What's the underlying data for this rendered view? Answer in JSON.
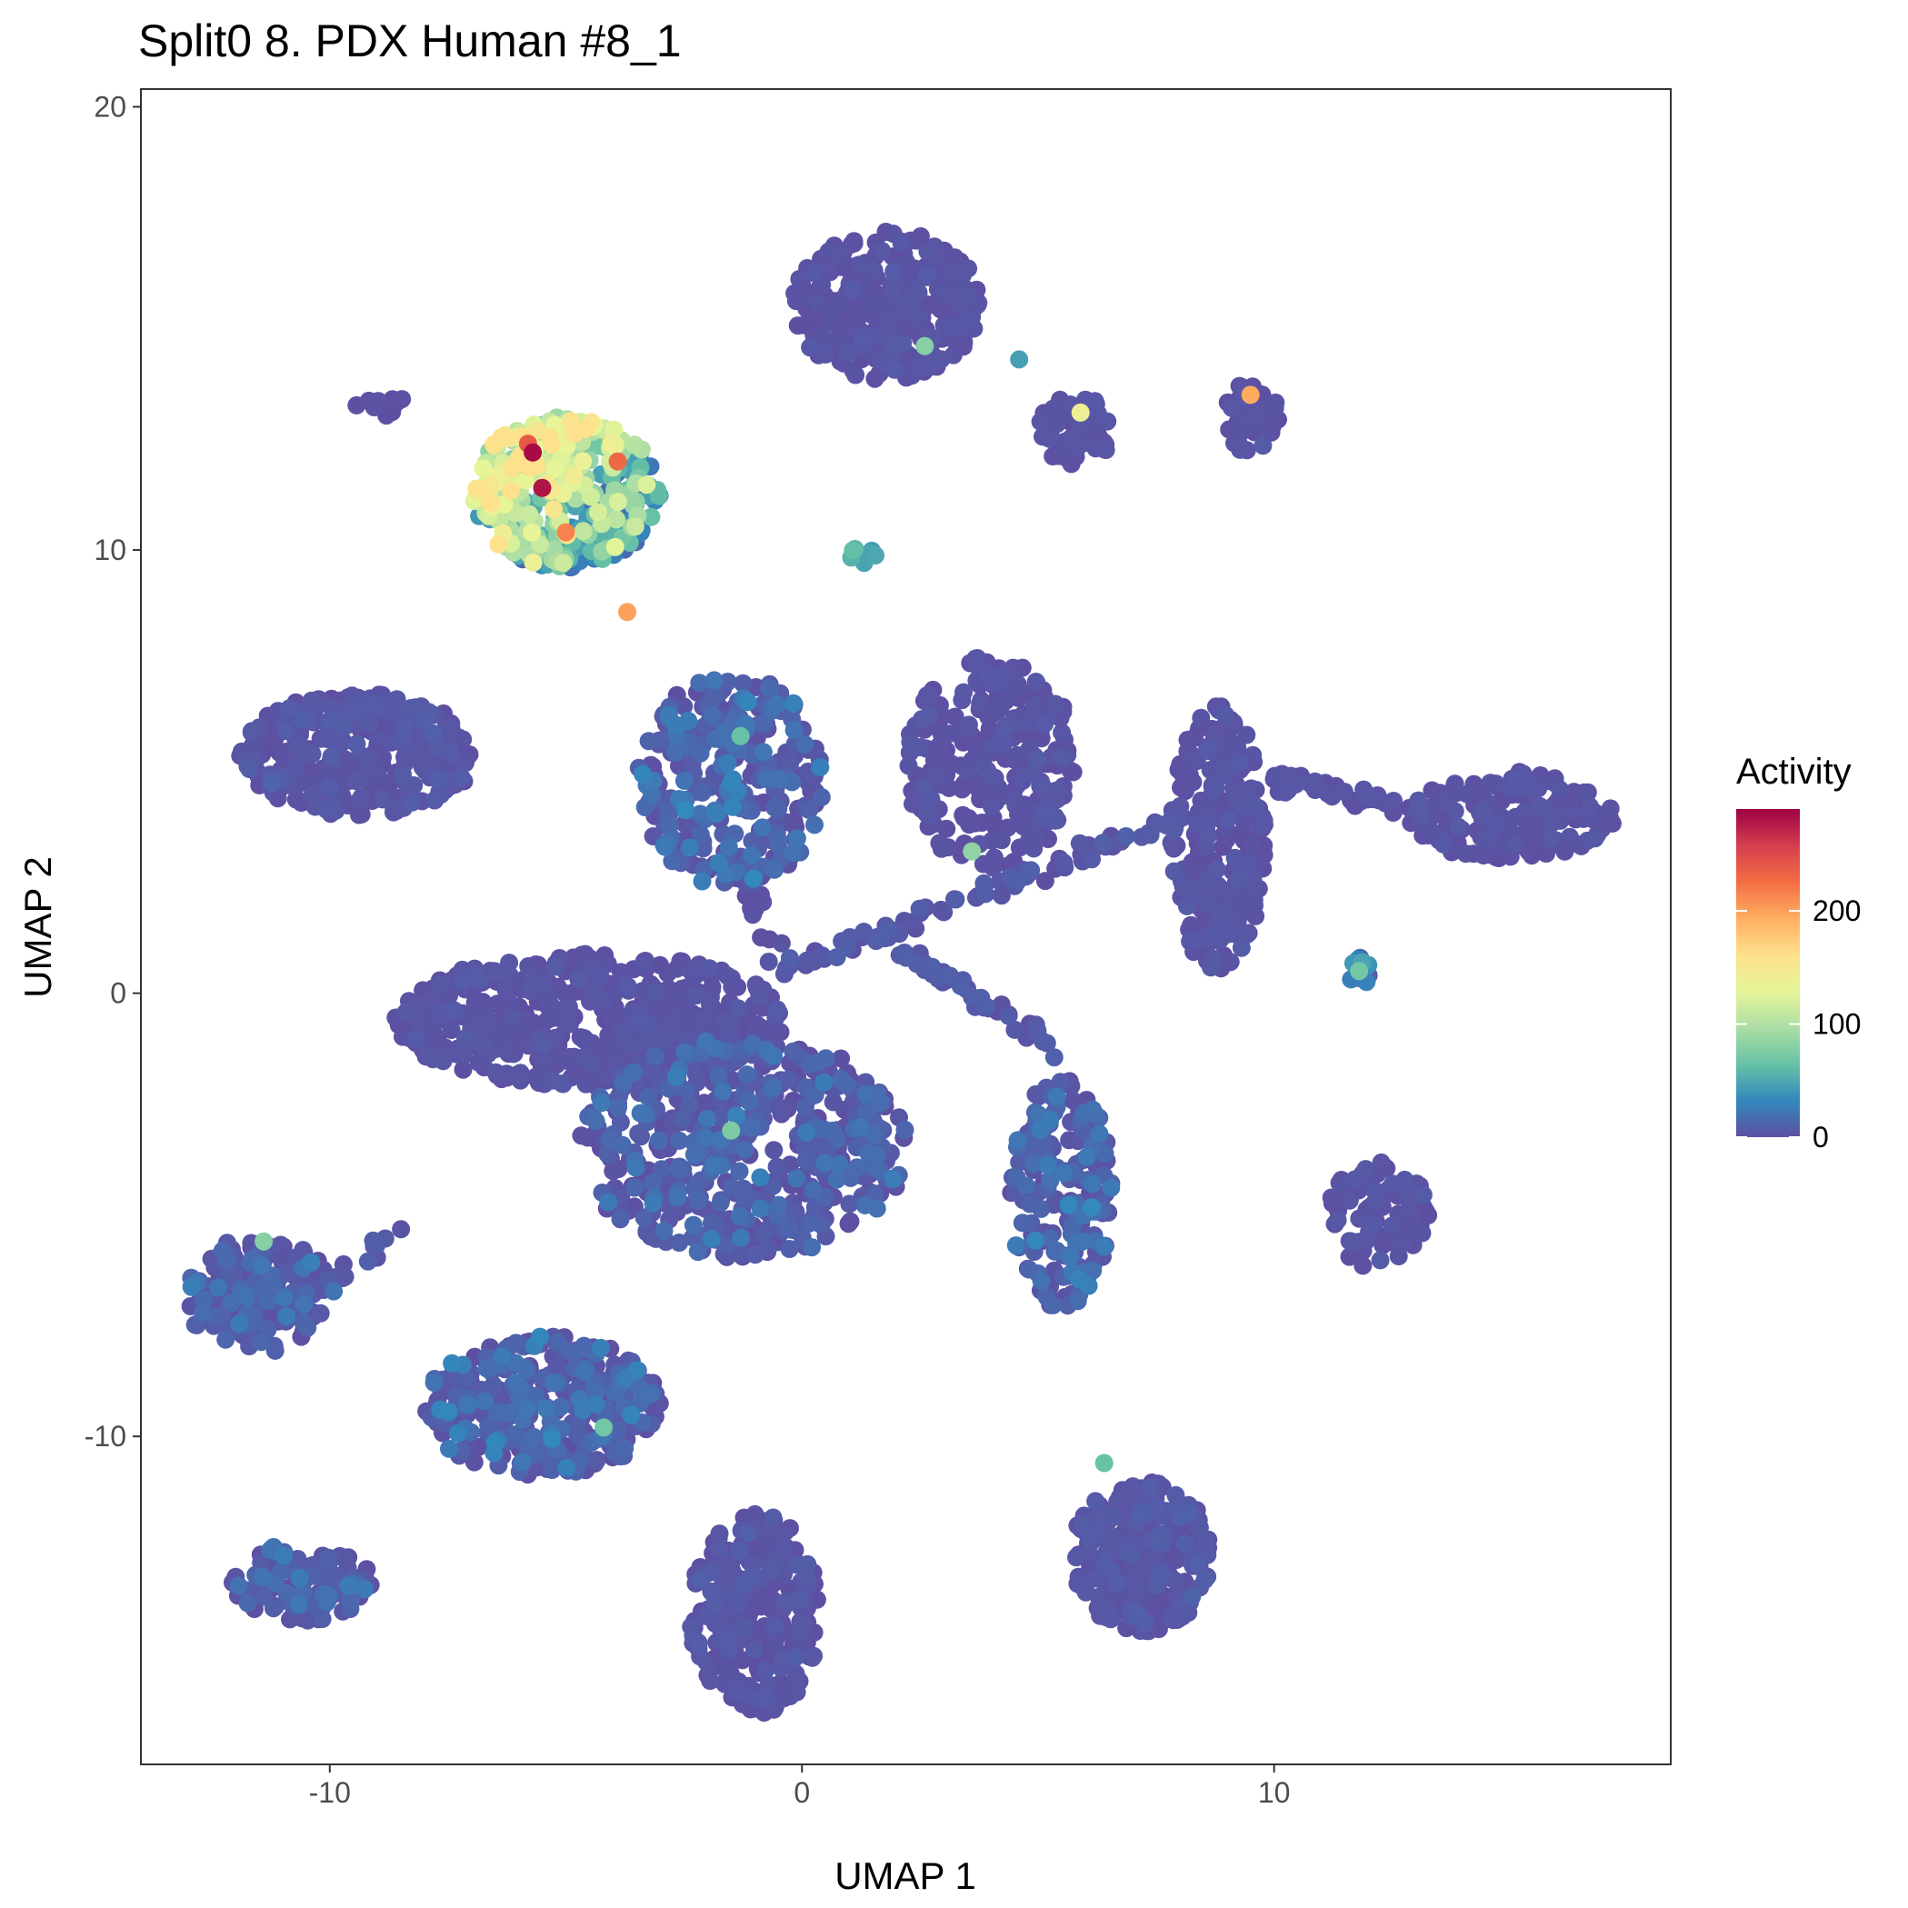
{
  "chart_data": {
    "type": "scatter",
    "title": "Split0 8. PDX Human #8_1",
    "xlabel": "UMAP 1",
    "ylabel": "UMAP 2",
    "xlim": [
      -14.0,
      18.4
    ],
    "ylim": [
      -17.4,
      20.4
    ],
    "x_ticks": [
      -10,
      0,
      10
    ],
    "x_tick_labels": [
      "-10",
      "0",
      "10"
    ],
    "y_ticks": [
      -10,
      0,
      10,
      20
    ],
    "y_tick_labels": [
      "-10",
      "0",
      "10",
      "20"
    ],
    "grid": false,
    "legend": {
      "title": "Activity",
      "placement": "right",
      "min": 0,
      "max": 290,
      "ticks": [
        0,
        100,
        200
      ],
      "tick_labels": [
        "0",
        "100",
        "200"
      ],
      "colormap": [
        "#5e4fa2",
        "#3288bd",
        "#66c2a5",
        "#abdda4",
        "#e6f598",
        "#fee08b",
        "#fdae61",
        "#f46d43",
        "#d53e4f",
        "#9e0142"
      ]
    },
    "clusters": [
      {
        "cx": -5.0,
        "cy": 11.3,
        "rx": 2.0,
        "ry": 1.7,
        "n": 380,
        "activity": [
          15,
          160
        ],
        "hot_side": "upper-left"
      },
      {
        "cx": 1.8,
        "cy": 15.5,
        "rx": 2.0,
        "ry": 1.7,
        "n": 300,
        "activity": [
          0,
          8
        ]
      },
      {
        "cx": 5.8,
        "cy": 12.7,
        "rx": 0.8,
        "ry": 0.8,
        "n": 60,
        "activity": [
          0,
          8
        ]
      },
      {
        "cx": 9.5,
        "cy": 13.0,
        "rx": 0.6,
        "ry": 0.8,
        "n": 40,
        "activity": [
          0,
          8
        ]
      },
      {
        "cx": -9.4,
        "cy": 5.4,
        "rx": 2.5,
        "ry": 1.4,
        "n": 320,
        "activity": [
          0,
          12
        ]
      },
      {
        "cx": -1.5,
        "cy": 4.8,
        "rx": 2.0,
        "ry": 2.4,
        "n": 320,
        "activity": [
          0,
          35
        ]
      },
      {
        "cx": 4.0,
        "cy": 5.2,
        "rx": 1.8,
        "ry": 2.4,
        "n": 260,
        "activity": [
          0,
          8
        ]
      },
      {
        "cx": 8.8,
        "cy": 3.5,
        "rx": 1.0,
        "ry": 3.0,
        "n": 260,
        "activity": [
          0,
          8
        ]
      },
      {
        "cx": 15.0,
        "cy": 4.0,
        "rx": 2.2,
        "ry": 1.0,
        "n": 160,
        "activity": [
          0,
          8
        ]
      },
      {
        "cx": -4.5,
        "cy": -0.6,
        "rx": 4.2,
        "ry": 1.5,
        "n": 560,
        "activity": [
          0,
          8
        ]
      },
      {
        "cx": -1.2,
        "cy": -3.5,
        "rx": 3.5,
        "ry": 2.5,
        "n": 520,
        "activity": [
          0,
          30
        ]
      },
      {
        "cx": 5.5,
        "cy": -4.5,
        "rx": 1.1,
        "ry": 2.6,
        "n": 180,
        "activity": [
          0,
          35
        ]
      },
      {
        "cx": 12.2,
        "cy": -5.0,
        "rx": 1.1,
        "ry": 1.2,
        "n": 90,
        "activity": [
          0,
          8
        ]
      },
      {
        "cx": -11.5,
        "cy": -6.8,
        "rx": 1.6,
        "ry": 1.3,
        "n": 160,
        "activity": [
          0,
          30
        ]
      },
      {
        "cx": -5.5,
        "cy": -9.3,
        "rx": 2.5,
        "ry": 1.6,
        "n": 340,
        "activity": [
          0,
          35
        ]
      },
      {
        "cx": -10.6,
        "cy": -13.3,
        "rx": 1.5,
        "ry": 0.9,
        "n": 120,
        "activity": [
          0,
          30
        ]
      },
      {
        "cx": -1.0,
        "cy": -14.0,
        "rx": 1.4,
        "ry": 2.3,
        "n": 260,
        "activity": [
          0,
          10
        ]
      },
      {
        "cx": 7.2,
        "cy": -12.7,
        "rx": 1.5,
        "ry": 1.7,
        "n": 260,
        "activity": [
          0,
          12
        ]
      },
      {
        "cx": 11.8,
        "cy": 0.5,
        "rx": 0.3,
        "ry": 0.3,
        "n": 10,
        "activity": [
          0,
          70
        ]
      },
      {
        "cx": -9.0,
        "cy": 13.3,
        "rx": 0.6,
        "ry": 0.3,
        "n": 10,
        "activity": [
          0,
          5
        ]
      },
      {
        "cx": 1.3,
        "cy": 9.8,
        "rx": 0.4,
        "ry": 0.3,
        "n": 8,
        "activity": [
          40,
          80
        ]
      }
    ],
    "bridges": [
      {
        "from": [
          -0.5,
          0.5
        ],
        "to": [
          8.0,
          4.0
        ],
        "n": 80,
        "activity": [
          0,
          10
        ]
      },
      {
        "from": [
          2.0,
          1.0
        ],
        "to": [
          5.5,
          -1.2
        ],
        "n": 40,
        "activity": [
          0,
          10
        ]
      },
      {
        "from": [
          9.5,
          5.0
        ],
        "to": [
          13.5,
          4.0
        ],
        "n": 40,
        "activity": [
          0,
          5
        ]
      },
      {
        "from": [
          -1.2,
          3.0
        ],
        "to": [
          -0.6,
          0.8
        ],
        "n": 14,
        "activity": [
          0,
          5
        ]
      },
      {
        "from": [
          -11.0,
          -7.0
        ],
        "to": [
          -8.4,
          -5.4
        ],
        "n": 18,
        "activity": [
          0,
          10
        ]
      }
    ],
    "highlights": [
      {
        "x": -5.7,
        "y": 12.2,
        "activity": 285
      },
      {
        "x": -5.5,
        "y": 11.4,
        "activity": 280
      },
      {
        "x": -5.8,
        "y": 12.4,
        "activity": 240
      },
      {
        "x": -3.9,
        "y": 12.0,
        "activity": 230
      },
      {
        "x": -5.0,
        "y": 10.4,
        "activity": 215
      },
      {
        "x": -3.7,
        "y": 8.6,
        "activity": 200
      },
      {
        "x": 9.5,
        "y": 13.5,
        "activity": 195
      },
      {
        "x": 5.9,
        "y": 13.1,
        "activity": 140
      },
      {
        "x": 2.6,
        "y": 14.6,
        "activity": 80
      },
      {
        "x": 3.6,
        "y": 3.2,
        "activity": 85
      },
      {
        "x": 11.8,
        "y": 0.5,
        "activity": 70
      },
      {
        "x": -1.5,
        "y": -3.1,
        "activity": 75
      },
      {
        "x": -11.4,
        "y": -5.6,
        "activity": 80
      },
      {
        "x": -4.2,
        "y": -9.8,
        "activity": 70
      },
      {
        "x": 6.4,
        "y": -10.6,
        "activity": 65
      },
      {
        "x": -1.3,
        "y": 5.8,
        "activity": 65
      },
      {
        "x": 4.6,
        "y": 14.3,
        "activity": 45
      }
    ]
  }
}
